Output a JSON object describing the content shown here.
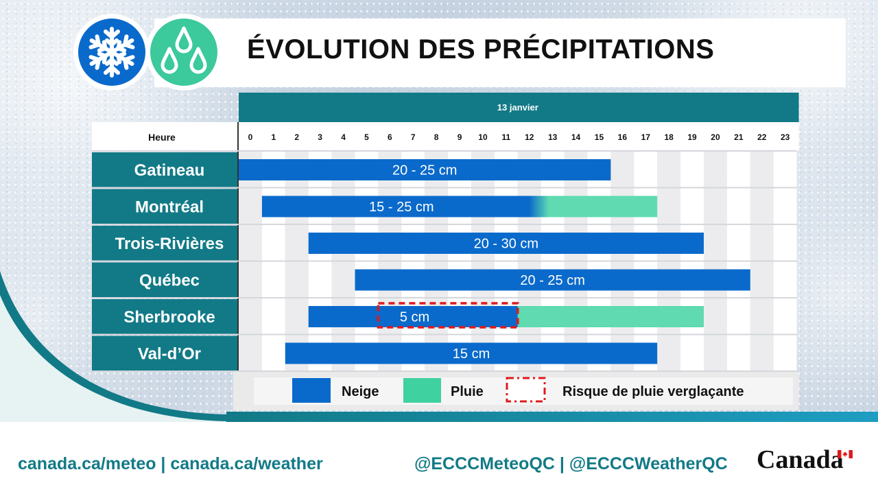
{
  "title": "ÉVOLUTION DES PRÉCIPITATIONS",
  "icons": {
    "snow": "snowflake-icon",
    "rain": "raindrops-icon"
  },
  "colors": {
    "snow": "#0A6ACB",
    "rain": "#5FDAB1",
    "header": "#127A87",
    "freezing_rain": "#E0191C"
  },
  "chart_data": {
    "type": "gantt",
    "date_header": "13 janvier",
    "hour_label": "Heure",
    "hours": [
      "0",
      "1",
      "2",
      "3",
      "4",
      "5",
      "6",
      "7",
      "8",
      "9",
      "10",
      "11",
      "12",
      "13",
      "14",
      "15",
      "16",
      "17",
      "18",
      "19",
      "20",
      "21",
      "22",
      "23"
    ],
    "rows": [
      {
        "city": "Gatineau",
        "amount": "20 - 25 cm",
        "segments": [
          {
            "type": "snow",
            "start": 0,
            "end": 16
          }
        ]
      },
      {
        "city": "Montréal",
        "amount": "15 - 25 cm",
        "segments": [
          {
            "type": "snow",
            "start": 1,
            "end": 13
          },
          {
            "type": "rain",
            "start": 13,
            "end": 18
          }
        ],
        "transition": true
      },
      {
        "city": "Trois-Rivières",
        "amount": "20 - 30 cm",
        "segments": [
          {
            "type": "snow",
            "start": 3,
            "end": 20
          }
        ]
      },
      {
        "city": "Québec",
        "amount": "20 - 25 cm",
        "segments": [
          {
            "type": "snow",
            "start": 5,
            "end": 22
          }
        ]
      },
      {
        "city": "Sherbrooke",
        "amount": "5 cm",
        "segments": [
          {
            "type": "snow",
            "start": 3,
            "end": 12
          },
          {
            "type": "rain",
            "start": 12,
            "end": 20
          }
        ],
        "freezing_rain": {
          "start": 6,
          "end": 12
        }
      },
      {
        "city": "Val-d’Or",
        "amount": "15 cm",
        "segments": [
          {
            "type": "snow",
            "start": 2,
            "end": 18
          }
        ]
      }
    ],
    "legend": [
      {
        "type": "snow",
        "label": "Neige"
      },
      {
        "type": "rain",
        "label": "Pluie"
      },
      {
        "type": "freezing_rain",
        "label": "Risque de pluie verglaçante"
      }
    ]
  },
  "footer": {
    "links": "canada.ca/meteo | canada.ca/weather",
    "social": "@ECCCMeteoQC | @ECCCWeatherQC",
    "wordmark": "Canada"
  }
}
